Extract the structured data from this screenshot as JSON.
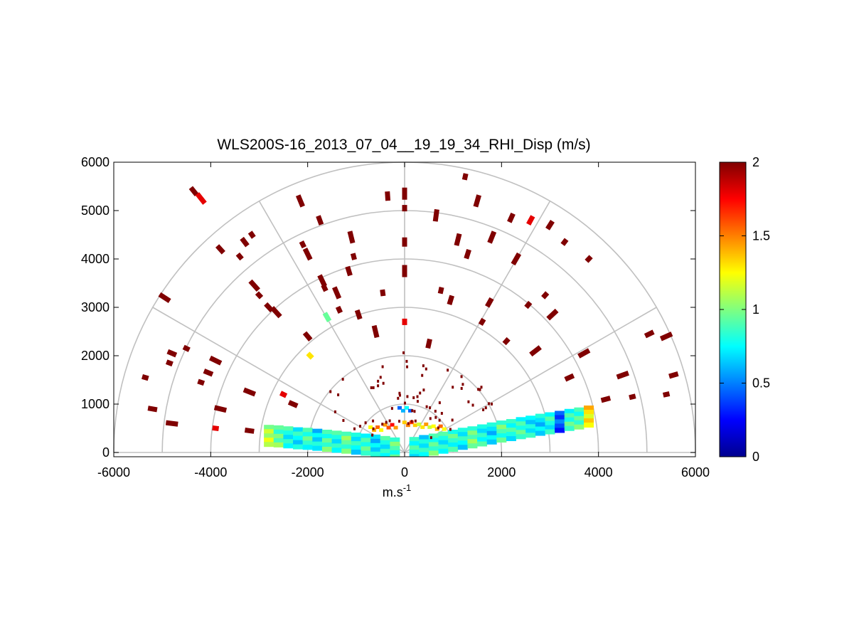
{
  "chart_data": {
    "type": "heatmap",
    "subtype": "polar-RHI-scan",
    "title": "WLS200S-16_2013_07_04__19_19_34_RHI_Disp (m/s)",
    "xlabel": "m.s",
    "xlabel_superscript": "-1",
    "ylabel": "",
    "xlim": [
      -6000,
      6000
    ],
    "ylim": [
      0,
      6000
    ],
    "x_ticks": [
      -6000,
      -4000,
      -2000,
      0,
      2000,
      4000,
      6000
    ],
    "x_tick_labels": [
      "-6000",
      "-4000",
      "-2000",
      "0",
      "2000",
      "4000",
      "6000"
    ],
    "y_ticks": [
      0,
      1000,
      2000,
      3000,
      4000,
      5000,
      6000
    ],
    "y_tick_labels": [
      "0",
      "1000",
      "2000",
      "3000",
      "4000",
      "5000",
      "6000"
    ],
    "polar_grid_ranges": [
      1000,
      2000,
      3000,
      4000,
      5000,
      6000
    ],
    "polar_grid_angles_deg": [
      0,
      30,
      60,
      90,
      120,
      150,
      180
    ],
    "colorbar": {
      "colormap": "jet",
      "range": [
        0,
        2
      ],
      "ticks": [
        0,
        0.5,
        1,
        1.5,
        2
      ],
      "tick_labels": [
        "0",
        "0.5",
        "1",
        "1.5",
        "2"
      ],
      "placement": "right"
    },
    "grid": true,
    "low_elevation_band": {
      "points": [
        {
          "x": -2800,
          "y": 350,
          "v": 1.1
        },
        {
          "x": -2600,
          "y": 340,
          "v": 0.95
        },
        {
          "x": -2400,
          "y": 320,
          "v": 0.8
        },
        {
          "x": -2200,
          "y": 300,
          "v": 0.75
        },
        {
          "x": -2000,
          "y": 290,
          "v": 0.85
        },
        {
          "x": -1800,
          "y": 270,
          "v": 0.7
        },
        {
          "x": -1600,
          "y": 250,
          "v": 0.9
        },
        {
          "x": -1400,
          "y": 230,
          "v": 0.8
        },
        {
          "x": -1200,
          "y": 210,
          "v": 0.95
        },
        {
          "x": -1000,
          "y": 190,
          "v": 0.75
        },
        {
          "x": -800,
          "y": 170,
          "v": 0.85
        },
        {
          "x": -600,
          "y": 150,
          "v": 0.7
        },
        {
          "x": -400,
          "y": 120,
          "v": 0.8
        },
        {
          "x": -200,
          "y": 90,
          "v": 0.9
        },
        {
          "x": 200,
          "y": 100,
          "v": 0.8
        },
        {
          "x": 400,
          "y": 140,
          "v": 0.75
        },
        {
          "x": 600,
          "y": 170,
          "v": 0.9
        },
        {
          "x": 800,
          "y": 210,
          "v": 0.8
        },
        {
          "x": 1000,
          "y": 250,
          "v": 0.85
        },
        {
          "x": 1200,
          "y": 290,
          "v": 0.75
        },
        {
          "x": 1400,
          "y": 320,
          "v": 0.95
        },
        {
          "x": 1600,
          "y": 360,
          "v": 0.8
        },
        {
          "x": 1800,
          "y": 400,
          "v": 0.7
        },
        {
          "x": 2000,
          "y": 440,
          "v": 0.9
        },
        {
          "x": 2200,
          "y": 470,
          "v": 0.8
        },
        {
          "x": 2400,
          "y": 510,
          "v": 0.85
        },
        {
          "x": 2600,
          "y": 540,
          "v": 0.75
        },
        {
          "x": 2800,
          "y": 580,
          "v": 0.7
        },
        {
          "x": 3000,
          "y": 610,
          "v": 0.8
        },
        {
          "x": 3200,
          "y": 640,
          "v": 0.4
        },
        {
          "x": 3400,
          "y": 680,
          "v": 0.85
        },
        {
          "x": 3600,
          "y": 710,
          "v": 0.9
        },
        {
          "x": 3800,
          "y": 750,
          "v": 1.3
        }
      ],
      "near_range_hotspots": [
        {
          "x": -600,
          "y": 500,
          "v": 1.4
        },
        {
          "x": -300,
          "y": 550,
          "v": 1.6
        },
        {
          "x": 100,
          "y": 600,
          "v": 1.5
        },
        {
          "x": 400,
          "y": 560,
          "v": 1.3
        },
        {
          "x": 700,
          "y": 520,
          "v": 1.4
        },
        {
          "x": 0,
          "y": 900,
          "v": 0.6
        }
      ]
    },
    "scattered_points": [
      {
        "x": -5350,
        "y": 1550,
        "v": 2
      },
      {
        "x": -5200,
        "y": 900,
        "v": 2
      },
      {
        "x": -4950,
        "y": 3200,
        "v": 2
      },
      {
        "x": -4850,
        "y": 1850,
        "v": 2
      },
      {
        "x": -4800,
        "y": 2050,
        "v": 2
      },
      {
        "x": -4800,
        "y": 600,
        "v": 2
      },
      {
        "x": -4500,
        "y": 2150,
        "v": 2
      },
      {
        "x": -4350,
        "y": 5400,
        "v": 2
      },
      {
        "x": -4200,
        "y": 5250,
        "v": 1.8
      },
      {
        "x": -4200,
        "y": 1450,
        "v": 2
      },
      {
        "x": -4050,
        "y": 1650,
        "v": 2
      },
      {
        "x": -3900,
        "y": 1900,
        "v": 2
      },
      {
        "x": -3900,
        "y": 500,
        "v": 1.8
      },
      {
        "x": -3800,
        "y": 4200,
        "v": 2
      },
      {
        "x": -3800,
        "y": 900,
        "v": 2
      },
      {
        "x": -3400,
        "y": 4050,
        "v": 2
      },
      {
        "x": -3300,
        "y": 4350,
        "v": 2
      },
      {
        "x": -3200,
        "y": 1250,
        "v": 2
      },
      {
        "x": -3150,
        "y": 4500,
        "v": 2
      },
      {
        "x": -3200,
        "y": 450,
        "v": 2
      },
      {
        "x": -3100,
        "y": 3450,
        "v": 2
      },
      {
        "x": -3000,
        "y": 3250,
        "v": 2
      },
      {
        "x": -2800,
        "y": 3000,
        "v": 2
      },
      {
        "x": -2650,
        "y": 2900,
        "v": 2
      },
      {
        "x": -2500,
        "y": 1200,
        "v": 1.8
      },
      {
        "x": -2300,
        "y": 1000,
        "v": 2
      },
      {
        "x": -2150,
        "y": 5200,
        "v": 2
      },
      {
        "x": -2100,
        "y": 4300,
        "v": 2
      },
      {
        "x": -2000,
        "y": 2400,
        "v": 2
      },
      {
        "x": -2000,
        "y": 4100,
        "v": 2
      },
      {
        "x": -1950,
        "y": 2000,
        "v": 1.3
      },
      {
        "x": -1750,
        "y": 4800,
        "v": 2
      },
      {
        "x": -1700,
        "y": 3550,
        "v": 2
      },
      {
        "x": -1650,
        "y": 3400,
        "v": 2
      },
      {
        "x": -1600,
        "y": 2800,
        "v": 0.95
      },
      {
        "x": -1400,
        "y": 3300,
        "v": 2
      },
      {
        "x": -1350,
        "y": 2950,
        "v": 2
      },
      {
        "x": -1150,
        "y": 3750,
        "v": 2
      },
      {
        "x": -1100,
        "y": 4450,
        "v": 2
      },
      {
        "x": -1050,
        "y": 4050,
        "v": 2
      },
      {
        "x": -950,
        "y": 2850,
        "v": 2
      },
      {
        "x": -600,
        "y": 2500,
        "v": 2
      },
      {
        "x": -450,
        "y": 3300,
        "v": 2
      },
      {
        "x": -350,
        "y": 5300,
        "v": 2
      },
      {
        "x": 0,
        "y": 5350,
        "v": 2
      },
      {
        "x": 0,
        "y": 5050,
        "v": 2
      },
      {
        "x": 0,
        "y": 4350,
        "v": 2
      },
      {
        "x": 0,
        "y": 3750,
        "v": 2
      },
      {
        "x": 0,
        "y": 2700,
        "v": 1.8
      },
      {
        "x": 500,
        "y": 2250,
        "v": 2
      },
      {
        "x": 650,
        "y": 4900,
        "v": 2
      },
      {
        "x": 750,
        "y": 3350,
        "v": 2
      },
      {
        "x": 950,
        "y": 3150,
        "v": 2
      },
      {
        "x": 1100,
        "y": 4400,
        "v": 2
      },
      {
        "x": 1250,
        "y": 5700,
        "v": 2
      },
      {
        "x": 1300,
        "y": 4100,
        "v": 2
      },
      {
        "x": 1500,
        "y": 5200,
        "v": 2
      },
      {
        "x": 1600,
        "y": 2700,
        "v": 2
      },
      {
        "x": 1750,
        "y": 3100,
        "v": 2
      },
      {
        "x": 1800,
        "y": 4450,
        "v": 2
      },
      {
        "x": 2100,
        "y": 2300,
        "v": 2
      },
      {
        "x": 2200,
        "y": 4850,
        "v": 2
      },
      {
        "x": 2300,
        "y": 4000,
        "v": 2
      },
      {
        "x": 2550,
        "y": 3050,
        "v": 2
      },
      {
        "x": 2600,
        "y": 4800,
        "v": 1.8
      },
      {
        "x": 2700,
        "y": 2100,
        "v": 2
      },
      {
        "x": 2900,
        "y": 3250,
        "v": 2
      },
      {
        "x": 3000,
        "y": 4700,
        "v": 2
      },
      {
        "x": 3050,
        "y": 2850,
        "v": 2
      },
      {
        "x": 3300,
        "y": 4350,
        "v": 2
      },
      {
        "x": 3400,
        "y": 1550,
        "v": 2
      },
      {
        "x": 3700,
        "y": 2050,
        "v": 2
      },
      {
        "x": 3800,
        "y": 4000,
        "v": 2
      },
      {
        "x": 4150,
        "y": 1100,
        "v": 2
      },
      {
        "x": 4500,
        "y": 1600,
        "v": 2
      },
      {
        "x": 4700,
        "y": 1150,
        "v": 2
      },
      {
        "x": 5050,
        "y": 2450,
        "v": 2
      },
      {
        "x": 5400,
        "y": 2400,
        "v": 2
      },
      {
        "x": 5400,
        "y": 1200,
        "v": 2
      },
      {
        "x": 5550,
        "y": 1600,
        "v": 2
      }
    ],
    "near_field_scatter_count": 70
  }
}
